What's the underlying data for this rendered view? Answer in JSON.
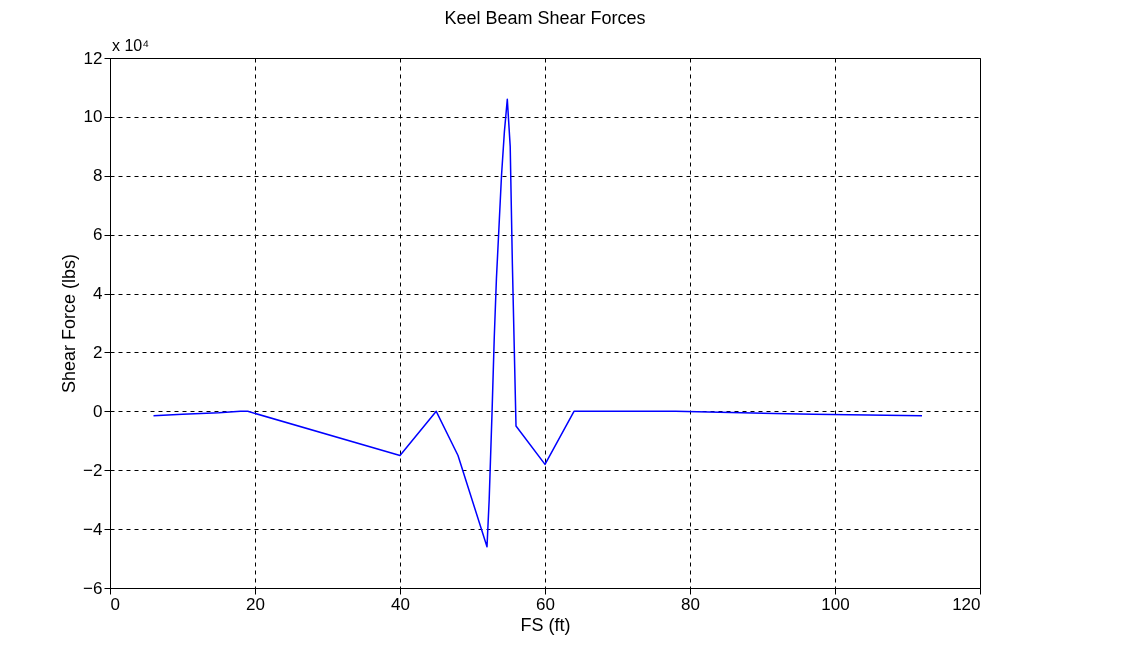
{
  "chart_data": {
    "type": "line",
    "title": "Keel Beam Shear Forces",
    "xlabel": "FS (ft)",
    "ylabel": "Shear Force (lbs)",
    "annotations": [
      "x 10⁴"
    ],
    "x": [
      6,
      10,
      15,
      18,
      19,
      40,
      45,
      48,
      52,
      52.3,
      52.7,
      53,
      53.3,
      53.7,
      54,
      54.4,
      54.8,
      55.2,
      55.5,
      56,
      60,
      64,
      78,
      97,
      112
    ],
    "series": [
      {
        "color": "#0000ff",
        "values": [
          -0.15,
          -0.1,
          -0.05,
          0,
          0,
          -1.5,
          0,
          -1.5,
          -4.6,
          -3.0,
          0,
          2.5,
          4.5,
          6.5,
          8,
          9.5,
          10.6,
          9,
          5,
          -0.5,
          -1.8,
          0,
          0,
          -0.1,
          -0.15
        ]
      }
    ],
    "xlim": [
      0,
      120
    ],
    "ylim": [
      -6,
      12
    ],
    "xticks": [
      0,
      20,
      40,
      60,
      80,
      100,
      120
    ],
    "yticks": [
      -6,
      -4,
      -2,
      0,
      2,
      4,
      6,
      8,
      10,
      12
    ],
    "grid": true,
    "legend": false,
    "marker": "none",
    "line_style": "solid"
  }
}
